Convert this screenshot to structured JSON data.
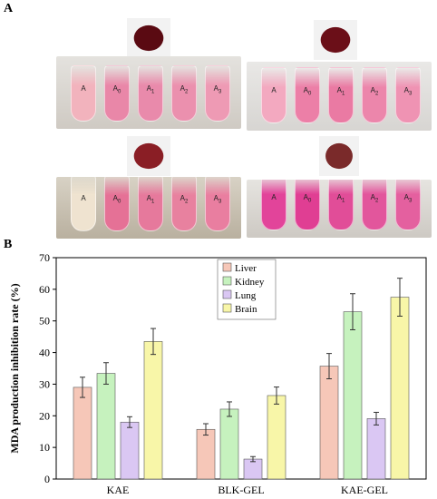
{
  "panel_a": {
    "label": "A",
    "photos": [
      {
        "tubes": [
          {
            "base": "A",
            "sub": ""
          },
          {
            "base": "A",
            "sub": "0"
          },
          {
            "base": "A",
            "sub": "1"
          },
          {
            "base": "A",
            "sub": "2"
          },
          {
            "base": "A",
            "sub": "3"
          }
        ],
        "tube_colors": [
          "#f2b3bd",
          "#e987a8",
          "#e98aab",
          "#eb90ae",
          "#ee9ab4"
        ],
        "organ_color": "#5a0a12"
      },
      {
        "tubes": [
          {
            "base": "A",
            "sub": ""
          },
          {
            "base": "A",
            "sub": "0"
          },
          {
            "base": "A",
            "sub": "1"
          },
          {
            "base": "A",
            "sub": "2"
          },
          {
            "base": "A",
            "sub": "3"
          }
        ],
        "tube_colors": [
          "#f3a9c0",
          "#ec7fa7",
          "#ea7aa3",
          "#ec86ab",
          "#ef93b3"
        ],
        "organ_color": "#6b0f18"
      },
      {
        "tubes": [
          {
            "base": "A",
            "sub": ""
          },
          {
            "base": "A",
            "sub": "0"
          },
          {
            "base": "A",
            "sub": "1"
          },
          {
            "base": "A",
            "sub": "2"
          },
          {
            "base": "A",
            "sub": "3"
          }
        ],
        "tube_colors": [
          "#efe3d0",
          "#e57196",
          "#e6799c",
          "#e8819f",
          "#e97ea0"
        ],
        "organ_color": "#8a1e25"
      },
      {
        "tubes": [
          {
            "base": "A",
            "sub": ""
          },
          {
            "base": "A",
            "sub": "0"
          },
          {
            "base": "A",
            "sub": "1"
          },
          {
            "base": "A",
            "sub": "2"
          },
          {
            "base": "A",
            "sub": "3"
          }
        ],
        "tube_colors": [
          "#e2449a",
          "#e03e93",
          "#e14d98",
          "#e2569c",
          "#e4609f"
        ],
        "organ_color": "#7a2a2a"
      }
    ]
  },
  "chart_data": {
    "label": "B",
    "type": "bar",
    "ylabel": "MDA production inhibition rate (%)",
    "xlabel": "",
    "ylim": [
      0,
      70
    ],
    "yticks": [
      0,
      10,
      20,
      30,
      40,
      50,
      60,
      70
    ],
    "categories": [
      "KAE",
      "BLK-GEL",
      "KAE-GEL"
    ],
    "series": [
      {
        "name": "Liver",
        "color": "#f6c7b8",
        "values": [
          29.0,
          15.7,
          35.7
        ],
        "errors": [
          3.2,
          1.8,
          4.0
        ]
      },
      {
        "name": "Kidney",
        "color": "#c6f2be",
        "values": [
          33.4,
          22.1,
          52.9
        ],
        "errors": [
          3.4,
          2.3,
          5.7
        ]
      },
      {
        "name": "Lung",
        "color": "#dac7f3",
        "values": [
          18.0,
          6.3,
          19.1
        ],
        "errors": [
          1.7,
          0.8,
          2.0
        ]
      },
      {
        "name": "Brain",
        "color": "#f8f6a8",
        "values": [
          43.5,
          26.4,
          57.5
        ],
        "errors": [
          4.1,
          2.7,
          6.0
        ]
      }
    ],
    "legend_position": "top-center",
    "grid": false
  }
}
